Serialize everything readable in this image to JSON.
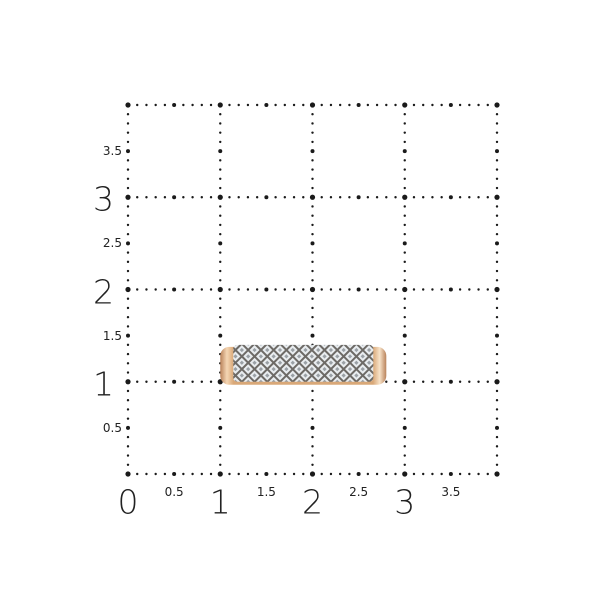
{
  "grid": {
    "x_range": [
      0,
      4
    ],
    "y_range": [
      0,
      4
    ],
    "major_step": 1,
    "minor_step": 0.5,
    "dot_color": "#1a1a1a"
  },
  "x_labels": [
    {
      "value": 0,
      "text": "0",
      "size": "big"
    },
    {
      "value": 0.5,
      "text": "0.5",
      "size": "small"
    },
    {
      "value": 1,
      "text": "1",
      "size": "big"
    },
    {
      "value": 1.5,
      "text": "1.5",
      "size": "small"
    },
    {
      "value": 2,
      "text": "2",
      "size": "big"
    },
    {
      "value": 2.5,
      "text": "2.5",
      "size": "small"
    },
    {
      "value": 3,
      "text": "3",
      "size": "big"
    },
    {
      "value": 3.5,
      "text": "3.5",
      "size": "small"
    }
  ],
  "y_labels": [
    {
      "value": 0.5,
      "text": "0.5",
      "size": "small"
    },
    {
      "value": 1,
      "text": "1",
      "size": "big"
    },
    {
      "value": 1.5,
      "text": "1.5",
      "size": "small"
    },
    {
      "value": 2,
      "text": "2",
      "size": "big"
    },
    {
      "value": 2.5,
      "text": "2.5",
      "size": "small"
    },
    {
      "value": 3,
      "text": "3",
      "size": "big"
    },
    {
      "value": 3.5,
      "text": "3.5",
      "size": "small"
    }
  ],
  "product": {
    "type": "pave diamond ring band",
    "metal_color": "#d9a878",
    "stone_color": "#e8ecef",
    "extent_x": [
      1,
      2.8
    ],
    "extent_y": [
      1,
      1.4
    ]
  }
}
